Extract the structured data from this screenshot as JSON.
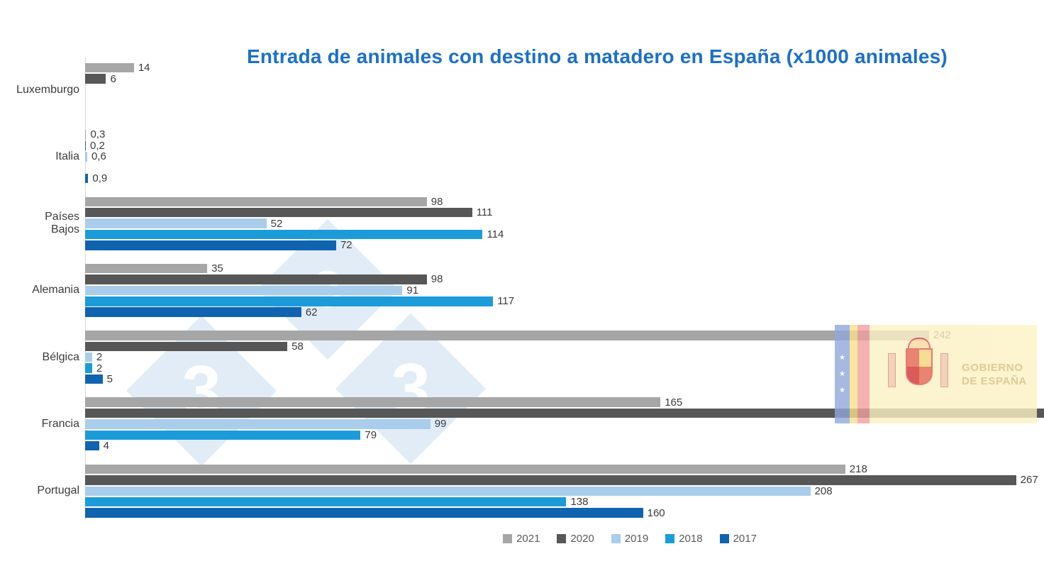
{
  "title": {
    "text": "Entrada de animales con destino a matadero en España (x1000 animales)",
    "color": "#1C70C6"
  },
  "watermark": {
    "digit": "3",
    "name": "333-diamonds-watermark"
  },
  "gov_logo": {
    "line1": "GOBIERNO",
    "line2": "DE ESPAÑA",
    "star": "★"
  },
  "legend": [
    {
      "label": "2021",
      "color": "#A6A6A6"
    },
    {
      "label": "2020",
      "color": "#575757"
    },
    {
      "label": "2019",
      "color": "#A9CDEA"
    },
    {
      "label": "2018",
      "color": "#1B9CD9"
    },
    {
      "label": "2017",
      "color": "#1064AF"
    }
  ],
  "chart_data": {
    "type": "bar",
    "orientation": "horizontal",
    "title": "Entrada de animales con destino a matadero en España (x1000 animales)",
    "unit": "x1000 animales",
    "value_axis_max": 275,
    "grid": false,
    "legend_position": "bottom",
    "series_order": [
      "2021",
      "2020",
      "2019",
      "2018",
      "2017"
    ],
    "series_colors": {
      "2021": "#A6A6A6",
      "2020": "#575757",
      "2019": "#A9CDEA",
      "2018": "#1B9CD9",
      "2017": "#1064AF"
    },
    "categories": [
      "Luxemburgo",
      "Italia",
      "Países Bajos",
      "Alemania",
      "Bélgica",
      "Francia",
      "Portugal"
    ],
    "rows": [
      {
        "category": "Luxemburgo",
        "label_display": "Luxemburgo",
        "values": {
          "2021": {
            "value": 14,
            "label": "14"
          },
          "2020": {
            "value": 6,
            "label": "6"
          },
          "2019": null,
          "2018": null,
          "2017": null
        }
      },
      {
        "category": "Italia",
        "label_display": "Italia",
        "values": {
          "2021": {
            "value": 0.3,
            "label": "0,3"
          },
          "2020": {
            "value": 0.2,
            "label": "0,2"
          },
          "2019": {
            "value": 0.6,
            "label": "0,6"
          },
          "2018": null,
          "2017": {
            "value": 0.9,
            "label": "0,9"
          }
        }
      },
      {
        "category": "Países Bajos",
        "label_display": "Países\nBajos",
        "values": {
          "2021": {
            "value": 98,
            "label": "98"
          },
          "2020": {
            "value": 111,
            "label": "111"
          },
          "2019": {
            "value": 52,
            "label": "52"
          },
          "2018": {
            "value": 114,
            "label": "114"
          },
          "2017": {
            "value": 72,
            "label": "72"
          }
        }
      },
      {
        "category": "Alemania",
        "label_display": "Alemania",
        "values": {
          "2021": {
            "value": 35,
            "label": "35"
          },
          "2020": {
            "value": 98,
            "label": "98"
          },
          "2019": {
            "value": 91,
            "label": "91"
          },
          "2018": {
            "value": 117,
            "label": "117"
          },
          "2017": {
            "value": 62,
            "label": "62"
          }
        }
      },
      {
        "category": "Bélgica",
        "label_display": "Bélgica",
        "values": {
          "2021": {
            "value": 242,
            "label": "242"
          },
          "2020": {
            "value": 58,
            "label": "58"
          },
          "2019": {
            "value": 2,
            "label": "2"
          },
          "2018": {
            "value": 2,
            "label": "2"
          },
          "2017": {
            "value": 5,
            "label": "5"
          }
        }
      },
      {
        "category": "Francia",
        "label_display": "Francia",
        "values": {
          "2021": {
            "value": 165,
            "label": "165"
          },
          "2020": {
            "value": null,
            "label": null,
            "clipped": true
          },
          "2019": {
            "value": 99,
            "label": "99"
          },
          "2018": {
            "value": 79,
            "label": "79"
          },
          "2017": {
            "value": 4,
            "label": "4"
          }
        }
      },
      {
        "category": "Portugal",
        "label_display": "Portugal",
        "values": {
          "2021": {
            "value": 218,
            "label": "218"
          },
          "2020": {
            "value": 267,
            "label": "267"
          },
          "2019": {
            "value": 208,
            "label": "208"
          },
          "2018": {
            "value": 138,
            "label": "138"
          },
          "2017": {
            "value": 160,
            "label": "160"
          }
        }
      }
    ]
  }
}
